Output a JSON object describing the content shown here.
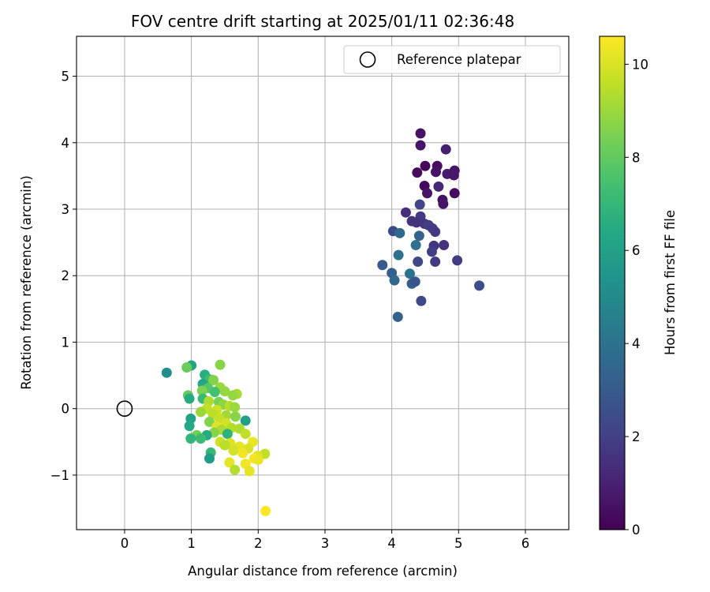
{
  "chart_data": {
    "type": "scatter",
    "title": "FOV centre drift starting at 2025/01/11 02:36:48",
    "xlabel": "Angular distance from reference (arcmin)",
    "ylabel": "Rotation from reference (arcmin)",
    "xlim": [
      -0.72,
      6.65
    ],
    "ylim": [
      -1.82,
      5.6
    ],
    "xticks": [
      0,
      1,
      2,
      3,
      4,
      5,
      6
    ],
    "yticks": [
      -1,
      0,
      1,
      2,
      3,
      4,
      5
    ],
    "xtick_labels": [
      "0",
      "1",
      "2",
      "3",
      "4",
      "5",
      "6"
    ],
    "ytick_labels": [
      "−1",
      "0",
      "1",
      "2",
      "3",
      "4",
      "5"
    ],
    "grid": true,
    "legend_position": "top-right",
    "colorscale": "viridis",
    "colorbar": {
      "label": "Hours from first FF file",
      "range": [
        0,
        10.6
      ],
      "ticks": [
        0,
        2,
        4,
        6,
        8,
        10
      ],
      "tick_labels": [
        "0",
        "2",
        "4",
        "6",
        "8",
        "10"
      ]
    },
    "reference_point": {
      "name": "Reference platepar",
      "x": 0,
      "y": 0
    },
    "series": [
      {
        "values_are": "[x, y, hours]",
        "points": [
          [
            4.43,
            4.14,
            0.5
          ],
          [
            4.43,
            3.96,
            0.6
          ],
          [
            4.81,
            3.9,
            0.9
          ],
          [
            4.5,
            3.65,
            0.2
          ],
          [
            4.68,
            3.65,
            0.4
          ],
          [
            4.38,
            3.55,
            0.3
          ],
          [
            4.66,
            3.56,
            0.5
          ],
          [
            4.83,
            3.53,
            0.8
          ],
          [
            4.94,
            3.58,
            0.6
          ],
          [
            4.93,
            3.51,
            0.7
          ],
          [
            4.49,
            3.35,
            0.2
          ],
          [
            4.7,
            3.34,
            1.2
          ],
          [
            4.53,
            3.24,
            0.6
          ],
          [
            4.94,
            3.24,
            0.3
          ],
          [
            4.76,
            3.14,
            0.4
          ],
          [
            4.77,
            3.08,
            0.5
          ],
          [
            4.42,
            3.07,
            2.2
          ],
          [
            4.21,
            2.95,
            1.4
          ],
          [
            4.43,
            2.89,
            1.8
          ],
          [
            4.3,
            2.82,
            1.6
          ],
          [
            4.37,
            2.8,
            1.5
          ],
          [
            4.49,
            2.78,
            1.7
          ],
          [
            4.55,
            2.76,
            2.0
          ],
          [
            4.61,
            2.71,
            1.9
          ],
          [
            4.65,
            2.66,
            1.8
          ],
          [
            4.02,
            2.67,
            2.4
          ],
          [
            4.12,
            2.64,
            3.6
          ],
          [
            4.41,
            2.6,
            3.3
          ],
          [
            4.36,
            2.46,
            3.9
          ],
          [
            4.63,
            2.45,
            1.6
          ],
          [
            4.78,
            2.46,
            1.5
          ],
          [
            4.6,
            2.36,
            2.0
          ],
          [
            4.1,
            2.31,
            3.9
          ],
          [
            4.98,
            2.23,
            1.9
          ],
          [
            4.39,
            2.21,
            2.3
          ],
          [
            4.65,
            2.21,
            1.8
          ],
          [
            3.86,
            2.16,
            3.0
          ],
          [
            4.0,
            2.04,
            3.2
          ],
          [
            4.27,
            2.03,
            4.0
          ],
          [
            4.04,
            1.93,
            3.6
          ],
          [
            4.3,
            1.88,
            3.1
          ],
          [
            4.35,
            1.91,
            2.8
          ],
          [
            5.31,
            1.85,
            2.5
          ],
          [
            4.44,
            1.62,
            2.3
          ],
          [
            4.09,
            1.38,
            3.3
          ],
          [
            0.63,
            0.54,
            5.1
          ],
          [
            1.0,
            0.65,
            6.2
          ],
          [
            0.93,
            0.62,
            8.2
          ],
          [
            1.43,
            0.66,
            8.7
          ],
          [
            1.2,
            0.51,
            6.6
          ],
          [
            1.27,
            0.44,
            7.2
          ],
          [
            1.33,
            0.43,
            8.6
          ],
          [
            1.17,
            0.37,
            6.3
          ],
          [
            1.43,
            0.32,
            9.0
          ],
          [
            1.25,
            0.31,
            7.8
          ],
          [
            1.16,
            0.27,
            8.5
          ],
          [
            1.5,
            0.26,
            8.9
          ],
          [
            1.35,
            0.25,
            7.4
          ],
          [
            1.68,
            0.22,
            9.2
          ],
          [
            1.62,
            0.2,
            8.9
          ],
          [
            0.95,
            0.2,
            8.0
          ],
          [
            0.97,
            0.15,
            6.5
          ],
          [
            1.17,
            0.15,
            7.1
          ],
          [
            1.26,
            0.11,
            9.3
          ],
          [
            1.41,
            0.1,
            8.4
          ],
          [
            1.48,
            0.06,
            8.8
          ],
          [
            1.57,
            0.04,
            9.4
          ],
          [
            1.65,
            0.02,
            9.0
          ],
          [
            1.23,
            0.0,
            9.6
          ],
          [
            1.38,
            -0.02,
            9.8
          ],
          [
            1.14,
            -0.05,
            9.0
          ],
          [
            1.32,
            -0.08,
            9.5
          ],
          [
            1.52,
            -0.1,
            9.1
          ],
          [
            1.66,
            -0.12,
            8.7
          ],
          [
            1.81,
            -0.18,
            6.0
          ],
          [
            0.99,
            -0.15,
            6.1
          ],
          [
            1.42,
            -0.15,
            9.7
          ],
          [
            1.27,
            -0.2,
            8.6
          ],
          [
            1.52,
            -0.22,
            9.9
          ],
          [
            0.97,
            -0.26,
            6.4
          ],
          [
            1.38,
            -0.27,
            10.1
          ],
          [
            1.6,
            -0.29,
            9.4
          ],
          [
            1.45,
            -0.32,
            9.2
          ],
          [
            1.72,
            -0.3,
            9.3
          ],
          [
            1.34,
            -0.36,
            8.7
          ],
          [
            1.81,
            -0.38,
            9.6
          ],
          [
            1.54,
            -0.38,
            6.8
          ],
          [
            1.08,
            -0.4,
            8.3
          ],
          [
            1.23,
            -0.4,
            6.5
          ],
          [
            0.99,
            -0.45,
            6.9
          ],
          [
            1.14,
            -0.45,
            7.2
          ],
          [
            1.92,
            -0.5,
            10.3
          ],
          [
            1.43,
            -0.5,
            9.8
          ],
          [
            1.58,
            -0.52,
            10.0
          ],
          [
            1.5,
            -0.55,
            9.5
          ],
          [
            1.72,
            -0.57,
            10.2
          ],
          [
            1.85,
            -0.6,
            10.0
          ],
          [
            1.63,
            -0.63,
            9.9
          ],
          [
            1.29,
            -0.66,
            7.0
          ],
          [
            1.77,
            -0.67,
            10.4
          ],
          [
            2.1,
            -0.68,
            9.6
          ],
          [
            1.99,
            -0.71,
            10.1
          ],
          [
            1.27,
            -0.75,
            5.8
          ],
          [
            1.94,
            -0.75,
            10.5
          ],
          [
            2.0,
            -0.77,
            10.3
          ],
          [
            1.57,
            -0.81,
            10.2
          ],
          [
            1.81,
            -0.83,
            10.4
          ],
          [
            1.65,
            -0.92,
            9.4
          ],
          [
            1.87,
            -0.94,
            10.2
          ],
          [
            2.11,
            -1.54,
            10.6
          ]
        ]
      }
    ]
  }
}
